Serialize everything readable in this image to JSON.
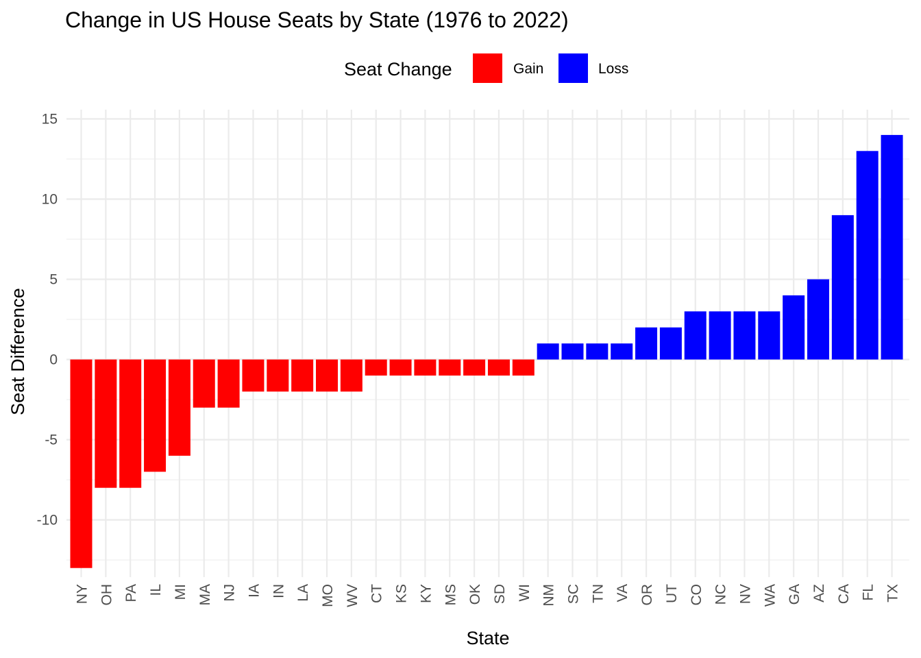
{
  "chart_data": {
    "type": "bar",
    "title": "Change in US House Seats by State (1976 to 2022)",
    "xlabel": "State",
    "ylabel": "Seat Difference",
    "legend": {
      "title": "Seat Change",
      "position": "top",
      "entries": [
        {
          "label": "Gain",
          "color": "#ff0000"
        },
        {
          "label": "Loss",
          "color": "#0000ff"
        }
      ]
    },
    "ylim": [
      -14,
      15.5
    ],
    "yticks": [
      -10,
      -5,
      0,
      5,
      10,
      15
    ],
    "ytick_labels": [
      "-10",
      "-5",
      "0",
      "5",
      "10",
      "15"
    ],
    "grid": true,
    "categories": [
      "NY",
      "OH",
      "PA",
      "IL",
      "MI",
      "MA",
      "NJ",
      "IA",
      "IN",
      "LA",
      "MO",
      "WV",
      "CT",
      "KS",
      "KY",
      "MS",
      "OK",
      "SD",
      "WI",
      "NM",
      "SC",
      "TN",
      "VA",
      "OR",
      "UT",
      "CO",
      "NC",
      "NV",
      "WA",
      "GA",
      "AZ",
      "CA",
      "FL",
      "TX"
    ],
    "values": [
      -13,
      -8,
      -8,
      -7,
      -6,
      -3,
      -3,
      -2,
      -2,
      -2,
      -2,
      -2,
      -1,
      -1,
      -1,
      -1,
      -1,
      -1,
      -1,
      1,
      1,
      1,
      1,
      2,
      2,
      3,
      3,
      3,
      3,
      4,
      5,
      9,
      13,
      14
    ],
    "bar_colors": {
      "Gain": "#ff0000",
      "Loss": "#0000ff"
    }
  }
}
